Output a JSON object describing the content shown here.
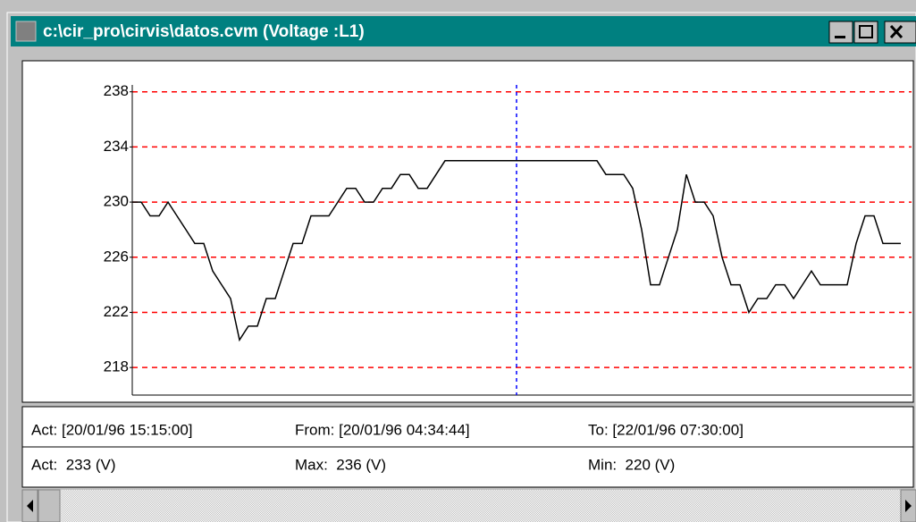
{
  "window": {
    "title": "c:\\cir_pro\\cirvis\\datos.cvm (Voltage :L1)"
  },
  "chart_data": {
    "type": "line",
    "values": [
      230,
      230,
      229,
      229,
      230,
      229,
      228,
      227,
      227,
      225,
      224,
      223,
      220,
      221,
      221,
      223,
      223,
      225,
      227,
      227,
      229,
      229,
      229,
      230,
      231,
      231,
      230,
      230,
      231,
      231,
      232,
      232,
      231,
      231,
      232,
      233,
      233,
      233,
      233,
      233,
      233,
      233,
      233,
      233,
      233,
      233,
      233,
      233,
      233,
      233,
      233,
      233,
      233,
      232,
      232,
      232,
      231,
      228,
      224,
      224,
      226,
      228,
      232,
      230,
      230,
      229,
      226,
      224,
      224,
      222,
      223,
      223,
      224,
      224,
      223,
      224,
      225,
      224,
      224,
      224,
      224,
      227,
      229,
      229,
      227,
      227,
      227
    ],
    "color": "#000000",
    "grid": true,
    "grid_color": "#ff0000",
    "cursor": 43,
    "cursor_color": "#0000ff",
    "ylim": [
      216,
      238.5
    ],
    "yticks": [
      218,
      222,
      226,
      230,
      234,
      238
    ]
  },
  "info": {
    "rows": [
      [
        "Act: [20/01/96 15:15:00]",
        "From: [20/01/96 04:34:44]",
        "To: [22/01/96 07:30:00]"
      ],
      [
        "Act:  233 (V)",
        "Max:  236 (V)",
        "Min:  220 (V)"
      ]
    ]
  }
}
